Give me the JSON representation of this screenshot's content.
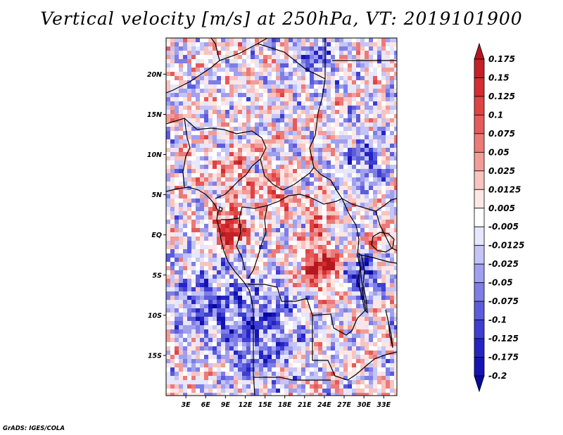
{
  "chart_data": {
    "type": "heatmap",
    "title": "Vertical velocity [m/s] at 250hPa, VT: 2019101900",
    "variable": "Vertical velocity",
    "units": "m/s",
    "level": "250hPa",
    "valid_time": "2019101900",
    "xlabel": "",
    "ylabel": "",
    "x_range_deg": [
      0,
      35
    ],
    "y_range_deg": [
      -20,
      24.5
    ],
    "x_ticks": [
      {
        "value": 3,
        "label": "3E"
      },
      {
        "value": 6,
        "label": "6E"
      },
      {
        "value": 9,
        "label": "9E"
      },
      {
        "value": 12,
        "label": "12E"
      },
      {
        "value": 15,
        "label": "15E"
      },
      {
        "value": 18,
        "label": "18E"
      },
      {
        "value": 21,
        "label": "21E"
      },
      {
        "value": 24,
        "label": "24E"
      },
      {
        "value": 27,
        "label": "27E"
      },
      {
        "value": 30,
        "label": "30E"
      },
      {
        "value": 33,
        "label": "33E"
      }
    ],
    "y_ticks": [
      {
        "value": 20,
        "label": "20N"
      },
      {
        "value": 15,
        "label": "15N"
      },
      {
        "value": 10,
        "label": "10N"
      },
      {
        "value": 5,
        "label": "5N"
      },
      {
        "value": 0,
        "label": "EQ"
      },
      {
        "value": -5,
        "label": "5S"
      },
      {
        "value": -10,
        "label": "10S"
      },
      {
        "value": -15,
        "label": "15S"
      }
    ],
    "colorbar": {
      "levels": [
        "0.175",
        "0.15",
        "0.125",
        "0.1",
        "0.075",
        "0.05",
        "0.025",
        "0.0125",
        "0.005",
        "-0.005",
        "-0.0125",
        "-0.025",
        "-0.05",
        "-0.075",
        "-0.1",
        "-0.125",
        "-0.175",
        "-0.2"
      ],
      "colors": [
        "#b4181e",
        "#c42028",
        "#d42c30",
        "#de4444",
        "#e65a5a",
        "#ec7a78",
        "#f29c98",
        "#f8c4c0",
        "#fde6e4",
        "#ffffff",
        "#e6e6fc",
        "#c4c4f6",
        "#a0a0ee",
        "#7e7ee6",
        "#5c5cdc",
        "#3e3ed2",
        "#2424c4",
        "#1414b4",
        "#08089c"
      ]
    },
    "features": {
      "coastline_and_borders": true,
      "strong_ascent_regions": [
        "Gabon/Cameroon coast near 9E 0-3N",
        "central DRC near 22-25E 2-6S",
        "northeastern DRC near 23E 3N",
        "Lake Victoria area near 32E 1S"
      ],
      "strong_descent_regions": [
        "Lake Tanganyika area near 29-30E 2-8S",
        "eastern Chad/Sudan border near 22E 22N"
      ]
    }
  },
  "credit": "GrADS: IGES/COLA",
  "colors": {
    "coast": "#000000",
    "background": "#ffffff"
  }
}
